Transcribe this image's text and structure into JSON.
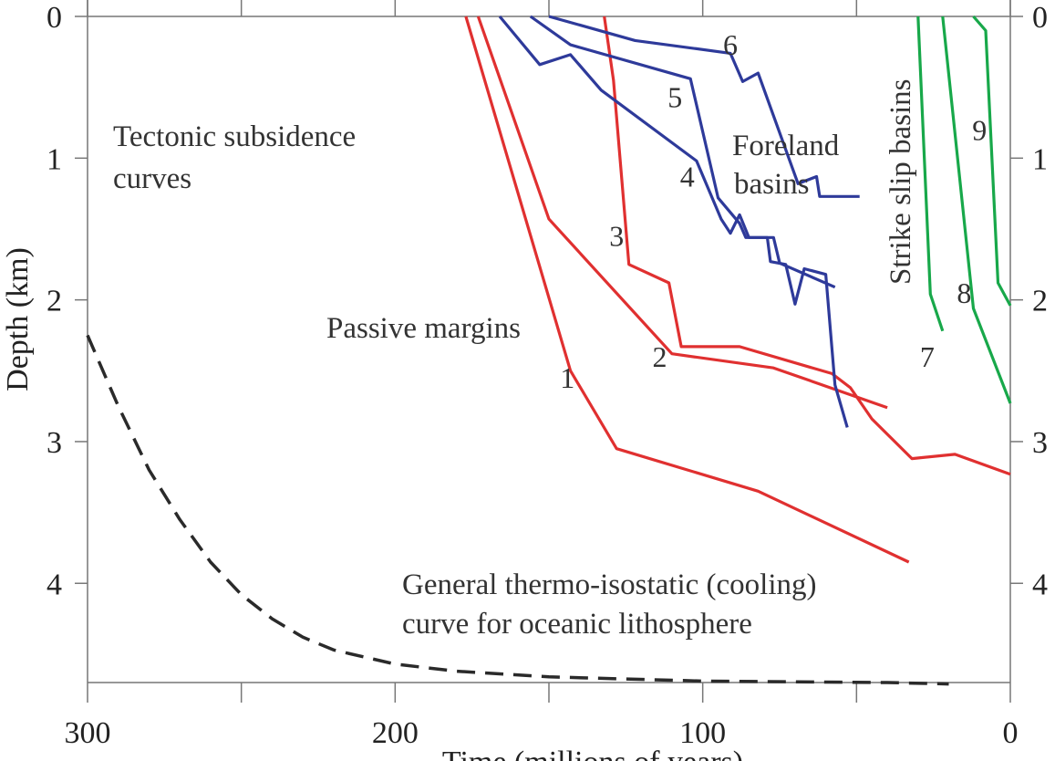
{
  "chart_data": {
    "type": "line",
    "title": "",
    "xlabel": "Time (millions of years)",
    "ylabel": "Depth (km)",
    "xlim": [
      300,
      0
    ],
    "ylim": [
      0,
      4.7
    ],
    "x_ticks": [
      "300",
      "200",
      "100",
      "0"
    ],
    "y_ticks": [
      "0",
      "1",
      "2",
      "3",
      "4"
    ],
    "grid": false,
    "annotations": {
      "tectonic": [
        "Tectonic subsidence",
        "curves"
      ],
      "passive": "Passive margins",
      "foreland": [
        "Foreland",
        "basins"
      ],
      "strike": "Strike slip basins",
      "cooling": [
        "General thermo-isostatic (cooling)",
        "curve for oceanic lithosphere"
      ]
    },
    "colors": {
      "passive_margin": "#e03030",
      "foreland": "#2e3a9a",
      "strike_slip": "#18a84a",
      "cooling": "#2a2a2a"
    },
    "series": [
      {
        "name": "1",
        "group": "passive_margin",
        "label_at": [
          144,
          2.55
        ],
        "points": [
          [
            177,
            0
          ],
          [
            143,
            2.5
          ],
          [
            128,
            3.05
          ],
          [
            82,
            3.35
          ],
          [
            33,
            3.85
          ]
        ]
      },
      {
        "name": "2",
        "group": "passive_margin",
        "label_at": [
          114,
          2.4
        ],
        "points": [
          [
            173,
            0
          ],
          [
            150,
            1.43
          ],
          [
            110,
            2.38
          ],
          [
            77,
            2.48
          ],
          [
            40,
            2.76
          ]
        ]
      },
      {
        "name": "3",
        "group": "passive_margin",
        "label_at": [
          128,
          1.55
        ],
        "points": [
          [
            132,
            0
          ],
          [
            129,
            0.45
          ],
          [
            124,
            1.75
          ],
          [
            111,
            1.88
          ],
          [
            107,
            2.33
          ],
          [
            88,
            2.33
          ],
          [
            58,
            2.52
          ],
          [
            52,
            2.62
          ],
          [
            45,
            2.84
          ],
          [
            32,
            3.12
          ],
          [
            18,
            3.09
          ],
          [
            0,
            3.23
          ]
        ]
      },
      {
        "name": "4",
        "group": "foreland",
        "label_at": [
          105,
          1.13
        ],
        "points": [
          [
            166,
            0
          ],
          [
            153,
            0.34
          ],
          [
            143,
            0.27
          ],
          [
            133,
            0.52
          ],
          [
            102,
            1.02
          ],
          [
            94,
            1.43
          ],
          [
            91,
            1.53
          ],
          [
            88,
            1.4
          ],
          [
            85,
            1.56
          ],
          [
            79,
            1.56
          ],
          [
            78,
            1.73
          ],
          [
            73,
            1.75
          ],
          [
            70,
            2.03
          ],
          [
            67,
            1.78
          ],
          [
            60,
            1.82
          ],
          [
            57,
            2.6
          ],
          [
            53,
            2.9
          ]
        ]
      },
      {
        "name": "5",
        "group": "foreland",
        "label_at": [
          109,
          0.57
        ],
        "points": [
          [
            156,
            0
          ],
          [
            143,
            0.2
          ],
          [
            104,
            0.44
          ],
          [
            95,
            1.28
          ],
          [
            88,
            1.46
          ],
          [
            86,
            1.56
          ],
          [
            77,
            1.56
          ],
          [
            75,
            1.74
          ],
          [
            57,
            1.91
          ]
        ]
      },
      {
        "name": "6",
        "group": "foreland",
        "label_at": [
          91,
          0.2
        ],
        "points": [
          [
            150,
            0
          ],
          [
            122,
            0.17
          ],
          [
            91,
            0.26
          ],
          [
            87,
            0.46
          ],
          [
            82,
            0.4
          ],
          [
            69,
            1.18
          ],
          [
            63,
            1.13
          ],
          [
            62,
            1.27
          ],
          [
            49,
            1.27
          ]
        ]
      },
      {
        "name": "7",
        "group": "strike_slip",
        "label_at": [
          27,
          2.4
        ],
        "points": [
          [
            30,
            0
          ],
          [
            26,
            1.96
          ],
          [
            22,
            2.22
          ]
        ]
      },
      {
        "name": "8",
        "group": "strike_slip",
        "label_at": [
          15,
          1.95
        ],
        "points": [
          [
            22,
            0
          ],
          [
            12,
            2.06
          ],
          [
            0,
            2.73
          ]
        ]
      },
      {
        "name": "9",
        "group": "strike_slip",
        "label_at": [
          10,
          0.8
        ],
        "points": [
          [
            12,
            0
          ],
          [
            8,
            0.1
          ],
          [
            4,
            1.88
          ],
          [
            0,
            2.04
          ]
        ]
      },
      {
        "name": "",
        "group": "cooling",
        "dashed": true,
        "points": [
          [
            300,
            2.25
          ],
          [
            290,
            2.75
          ],
          [
            280,
            3.2
          ],
          [
            270,
            3.55
          ],
          [
            260,
            3.85
          ],
          [
            250,
            4.08
          ],
          [
            240,
            4.25
          ],
          [
            230,
            4.38
          ],
          [
            220,
            4.47
          ],
          [
            200,
            4.57
          ],
          [
            180,
            4.62
          ],
          [
            150,
            4.66
          ],
          [
            100,
            4.69
          ],
          [
            40,
            4.7
          ],
          [
            20,
            4.71
          ]
        ]
      }
    ]
  }
}
